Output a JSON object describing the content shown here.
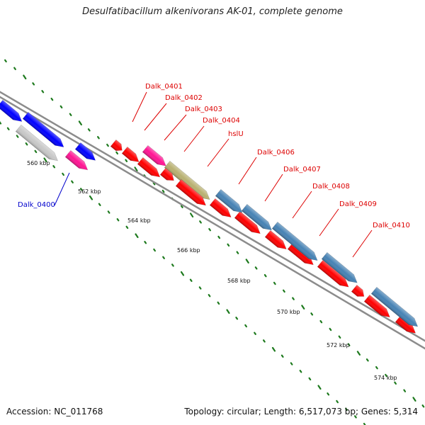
{
  "title": "Desulfatibacillum alkenivorans AK-01, complete genome",
  "footer": {
    "accession": "Accession: NC_011768",
    "topology": "Topology: circular; Length: 6,517,073 bp; Genes: 5,314"
  },
  "colors": {
    "backbone": "#8c8c8c",
    "tick": "#1e7a1e",
    "label_red": "#dd0000",
    "label_blue": "#0000cc"
  },
  "ticks": [
    "560 kbp",
    "562 kbp",
    "564 kbp",
    "566 kbp",
    "568 kbp",
    "570 kbp",
    "572 kbp",
    "574 kbp"
  ],
  "genes": [
    {
      "label": "Dalk_0400",
      "color": "#0000ff"
    },
    {
      "label": "Dalk_0401",
      "color": "#ff0000"
    },
    {
      "label": "Dalk_0402",
      "color": "#ff0000"
    },
    {
      "label": "Dalk_0403",
      "color": "#ff1493"
    },
    {
      "label": "Dalk_0404",
      "color": "#ff0000"
    },
    {
      "label": "hslU",
      "color": "#b8b070"
    },
    {
      "label": "Dalk_0406",
      "color": "#4682b4"
    },
    {
      "label": "Dalk_0407",
      "color": "#ff0000"
    },
    {
      "label": "Dalk_0408",
      "color": "#4682b4"
    },
    {
      "label": "Dalk_0409",
      "color": "#ff0000"
    },
    {
      "label": "Dalk_0410",
      "color": "#4682b4"
    }
  ]
}
